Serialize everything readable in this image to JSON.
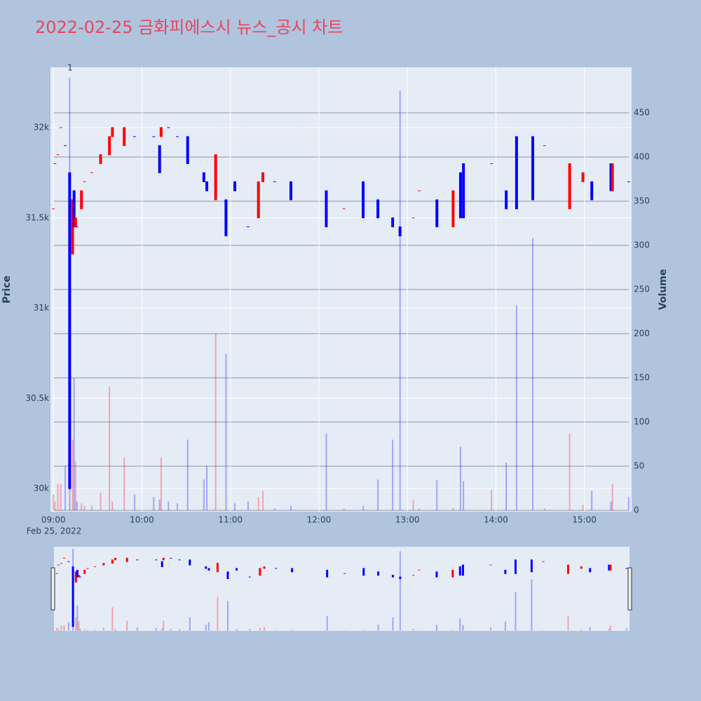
{
  "chart_data": {
    "type": "candlestick",
    "title": "2022-02-25 금화피에스시 뉴스_공시 차트",
    "y_title": "Price",
    "y2_title": "Volume",
    "x_date_label": "Feb 25, 2022",
    "annotation": "1",
    "increasing_color": "#ff0000",
    "decreasing_color": "#0000ff",
    "x": [
      "09:00",
      "09:01",
      "09:03",
      "09:05",
      "09:08",
      "09:11",
      "09:13",
      "09:14",
      "09:15",
      "09:16",
      "09:19",
      "09:21",
      "09:26",
      "09:32",
      "09:38",
      "09:40",
      "09:48",
      "09:55",
      "10:08",
      "10:12",
      "10:13",
      "10:18",
      "10:24",
      "10:31",
      "10:42",
      "10:44",
      "10:50",
      "10:57",
      "11:03",
      "11:12",
      "11:19",
      "11:22",
      "11:30",
      "11:41",
      "12:05",
      "12:17",
      "12:30",
      "12:40",
      "12:50",
      "12:55",
      "13:04",
      "13:08",
      "13:20",
      "13:31",
      "13:36",
      "13:38",
      "13:57",
      "14:07",
      "14:14",
      "14:25",
      "14:33",
      "14:50",
      "14:59",
      "15:05",
      "15:18",
      "15:19",
      "15:30"
    ],
    "open": [
      31550,
      31800,
      31850,
      32000,
      31900,
      31750,
      31300,
      31650,
      31450,
      31450,
      31550,
      31700,
      31750,
      31800,
      31850,
      31950,
      31900,
      31950,
      31950,
      31900,
      31950,
      32000,
      31950,
      31950,
      31750,
      31700,
      31600,
      31600,
      31700,
      31450,
      31500,
      31700,
      31700,
      31700,
      31650,
      31550,
      31700,
      31600,
      31500,
      31450,
      31500,
      31650,
      31600,
      31450,
      31750,
      31800,
      31800,
      31650,
      31950,
      31950,
      31900,
      31550,
      31700,
      31700,
      31800,
      31650,
      31700
    ],
    "high": [
      31550,
      31800,
      31850,
      32000,
      31900,
      31750,
      31600,
      31650,
      31500,
      31450,
      31650,
      31700,
      31750,
      31850,
      31950,
      32000,
      32000,
      31950,
      31950,
      31900,
      32000,
      32000,
      31950,
      31950,
      31750,
      31700,
      31850,
      31600,
      31700,
      31450,
      31700,
      31750,
      31700,
      31700,
      31650,
      31550,
      31700,
      31600,
      31500,
      31450,
      31500,
      31650,
      31600,
      31650,
      31750,
      31800,
      31800,
      31650,
      31950,
      31950,
      31900,
      31800,
      31750,
      31700,
      31800,
      31800,
      31700
    ],
    "low": [
      31550,
      31800,
      31850,
      32000,
      31900,
      30000,
      31300,
      31450,
      31450,
      31450,
      31550,
      31700,
      31750,
      31800,
      31850,
      31950,
      31900,
      31950,
      31950,
      31750,
      31950,
      32000,
      31950,
      31800,
      31700,
      31650,
      31600,
      31400,
      31650,
      31450,
      31500,
      31700,
      31700,
      31600,
      31450,
      31550,
      31500,
      31500,
      31450,
      31400,
      31500,
      31650,
      31450,
      31450,
      31500,
      31500,
      31800,
      31550,
      31550,
      31600,
      31900,
      31550,
      31700,
      31600,
      31650,
      31650,
      31700
    ],
    "close": [
      31550,
      31800,
      31850,
      32000,
      31900,
      30000,
      31600,
      31450,
      31500,
      31450,
      31650,
      31700,
      31750,
      31850,
      31950,
      32000,
      32000,
      31950,
      31950,
      31750,
      32000,
      32000,
      31950,
      31800,
      31700,
      31650,
      31850,
      31400,
      31650,
      31450,
      31700,
      31750,
      31700,
      31600,
      31450,
      31550,
      31500,
      31500,
      31450,
      31400,
      31500,
      31650,
      31450,
      31650,
      31500,
      31500,
      31800,
      31550,
      31550,
      31600,
      31900,
      31800,
      31750,
      31600,
      31650,
      31800,
      31700
    ],
    "volume": [
      18,
      10,
      30,
      30,
      50,
      490,
      80,
      150,
      55,
      10,
      8,
      5,
      5,
      20,
      140,
      10,
      60,
      18,
      15,
      12,
      60,
      10,
      8,
      80,
      35,
      50,
      200,
      177,
      8,
      10,
      15,
      22,
      2,
      5,
      87,
      2,
      5,
      35,
      80,
      475,
      12,
      2,
      34,
      3,
      72,
      33,
      23,
      54,
      232,
      308,
      2,
      87,
      6,
      22,
      10,
      30,
      15
    ],
    "xlim": [
      "08:58",
      "15:32"
    ],
    "xticks": [
      "09:00",
      "10:00",
      "11:00",
      "12:00",
      "13:00",
      "14:00",
      "15:00"
    ],
    "ylim": [
      29872,
      32334
    ],
    "yticks": [
      {
        "value": 30000,
        "label": "30k"
      },
      {
        "value": 30500,
        "label": "30.5k"
      },
      {
        "value": 31000,
        "label": "31k"
      },
      {
        "value": 31500,
        "label": "31.5k"
      },
      {
        "value": 32000,
        "label": "32k"
      }
    ],
    "y2lim": [
      -1.6,
      501.6
    ],
    "y2ticks": [
      0,
      50,
      100,
      150,
      200,
      250,
      300,
      350,
      400,
      450
    ],
    "grid": true
  }
}
